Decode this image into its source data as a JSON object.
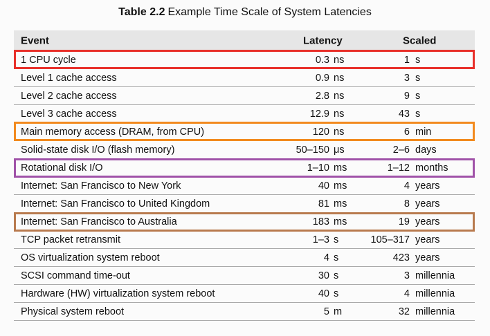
{
  "title": {
    "label": "Table 2.2",
    "text": "Example Time Scale of System Latencies"
  },
  "columns": {
    "event": "Event",
    "latency": "Latency",
    "scaled": "Scaled"
  },
  "rows": [
    {
      "event": "1 CPU cycle",
      "latency": "0.3",
      "latency_unit": "ns",
      "scaled": "1",
      "scaled_unit": "s",
      "highlight": "#e8302a"
    },
    {
      "event": "Level 1 cache access",
      "latency": "0.9",
      "latency_unit": "ns",
      "scaled": "3",
      "scaled_unit": "s"
    },
    {
      "event": "Level 2 cache access",
      "latency": "2.8",
      "latency_unit": "ns",
      "scaled": "9",
      "scaled_unit": "s"
    },
    {
      "event": "Level 3 cache access",
      "latency": "12.9",
      "latency_unit": "ns",
      "scaled": "43",
      "scaled_unit": "s"
    },
    {
      "event": "Main memory access (DRAM, from CPU)",
      "latency": "120",
      "latency_unit": "ns",
      "scaled": "6",
      "scaled_unit": "min",
      "highlight": "#f28a1e"
    },
    {
      "event": "Solid-state disk I/O (flash memory)",
      "latency": "50–150",
      "latency_unit": "μs",
      "scaled": "2–6",
      "scaled_unit": "days"
    },
    {
      "event": "Rotational disk I/O",
      "latency": "1–10",
      "latency_unit": "ms",
      "scaled": "1–12",
      "scaled_unit": "months",
      "highlight": "#a052a8"
    },
    {
      "event": "Internet: San Francisco to New York",
      "latency": "40",
      "latency_unit": "ms",
      "scaled": "4",
      "scaled_unit": "years"
    },
    {
      "event": "Internet: San Francisco to United Kingdom",
      "latency": "81",
      "latency_unit": "ms",
      "scaled": "8",
      "scaled_unit": "years"
    },
    {
      "event": "Internet: San Francisco to Australia",
      "latency": "183",
      "latency_unit": "ms",
      "scaled": "19",
      "scaled_unit": "years",
      "highlight": "#b87a4e"
    },
    {
      "event": "TCP packet retransmit",
      "latency": "1–3",
      "latency_unit": "s",
      "scaled": "105–317",
      "scaled_unit": "years"
    },
    {
      "event": "OS virtualization system reboot",
      "latency": "4",
      "latency_unit": "s",
      "scaled": "423",
      "scaled_unit": "years"
    },
    {
      "event": "SCSI command time-out",
      "latency": "30",
      "latency_unit": "s",
      "scaled": "3",
      "scaled_unit": "millennia"
    },
    {
      "event": "Hardware (HW) virtualization system reboot",
      "latency": "40",
      "latency_unit": "s",
      "scaled": "4",
      "scaled_unit": "millennia"
    },
    {
      "event": "Physical system reboot",
      "latency": "5",
      "latency_unit": "m",
      "scaled": "32",
      "scaled_unit": "millennia"
    }
  ]
}
